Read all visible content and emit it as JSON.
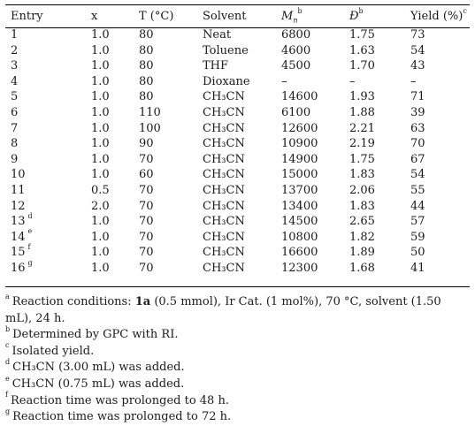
{
  "headers": {
    "entry": "Entry",
    "x": "x",
    "temp": "T (°C)",
    "solvent": "Solvent",
    "mn_base": "M",
    "mn_sub": "n",
    "mn_sup": "b",
    "d_sym": "Đ",
    "d_sup": "b",
    "yield": "Yield (%)",
    "yield_sup": "c"
  },
  "rows": [
    {
      "entry": "1",
      "sup": "",
      "x": "1.0",
      "t": "80",
      "solvent": "Neat",
      "mn": "6800",
      "d": "1.75",
      "yield": "73"
    },
    {
      "entry": "2",
      "sup": "",
      "x": "1.0",
      "t": "80",
      "solvent": "Toluene",
      "mn": "4600",
      "d": "1.63",
      "yield": "54"
    },
    {
      "entry": "3",
      "sup": "",
      "x": "1.0",
      "t": "80",
      "solvent": "THF",
      "mn": "4500",
      "d": "1.70",
      "yield": "43"
    },
    {
      "entry": "4",
      "sup": "",
      "x": "1.0",
      "t": "80",
      "solvent": "Dioxane",
      "mn": "–",
      "d": "–",
      "yield": "–"
    },
    {
      "entry": "5",
      "sup": "",
      "x": "1.0",
      "t": "80",
      "solvent": "CH₃CN",
      "mn": "14600",
      "d": "1.93",
      "yield": "71"
    },
    {
      "entry": "6",
      "sup": "",
      "x": "1.0",
      "t": "110",
      "solvent": "CH₃CN",
      "mn": "6100",
      "d": "1.88",
      "yield": "39"
    },
    {
      "entry": "7",
      "sup": "",
      "x": "1.0",
      "t": "100",
      "solvent": "CH₃CN",
      "mn": "12600",
      "d": "2.21",
      "yield": "63"
    },
    {
      "entry": "8",
      "sup": "",
      "x": "1.0",
      "t": "90",
      "solvent": "CH₃CN",
      "mn": "10900",
      "d": "2.19",
      "yield": "70"
    },
    {
      "entry": "9",
      "sup": "",
      "x": "1.0",
      "t": "70",
      "solvent": "CH₃CN",
      "mn": "14900",
      "d": "1.75",
      "yield": "67"
    },
    {
      "entry": "10",
      "sup": "",
      "x": "1.0",
      "t": "60",
      "solvent": "CH₃CN",
      "mn": "15000",
      "d": "1.83",
      "yield": "54"
    },
    {
      "entry": "11",
      "sup": "",
      "x": "0.5",
      "t": "70",
      "solvent": "CH₃CN",
      "mn": "13700",
      "d": "2.06",
      "yield": "55"
    },
    {
      "entry": "12",
      "sup": "",
      "x": "2.0",
      "t": "70",
      "solvent": "CH₃CN",
      "mn": "13400",
      "d": "1.83",
      "yield": "44"
    },
    {
      "entry": "13",
      "sup": "d",
      "x": "1.0",
      "t": "70",
      "solvent": "CH₃CN",
      "mn": "14500",
      "d": "2.65",
      "yield": "57"
    },
    {
      "entry": "14",
      "sup": "e",
      "x": "1.0",
      "t": "70",
      "solvent": "CH₃CN",
      "mn": "10800",
      "d": "1.82",
      "yield": "59"
    },
    {
      "entry": "15",
      "sup": "f",
      "x": "1.0",
      "t": "70",
      "solvent": "CH₃CN",
      "mn": "16600",
      "d": "1.89",
      "yield": "50"
    },
    {
      "entry": "16",
      "sup": "g",
      "x": "1.0",
      "t": "70",
      "solvent": "CH₃CN",
      "mn": "12300",
      "d": "1.68",
      "yield": "41"
    }
  ],
  "footnotes": {
    "a": {
      "mark": "a",
      "pre": "Reaction conditions: ",
      "bold": "1a",
      "post": " (0.5 mmol), Ir Cat. (1 mol%), 70 °C, solvent (1.50 mL), 24 h."
    },
    "b": {
      "mark": "b",
      "text": "Determined by GPC with RI."
    },
    "c": {
      "mark": "c",
      "text": "Isolated yield."
    },
    "d": {
      "mark": "d",
      "text": "CH₃CN (3.00 mL) was added."
    },
    "e": {
      "mark": "e",
      "text": "CH₃CN (0.75 mL) was added."
    },
    "f": {
      "mark": "f",
      "text": "Reaction time was prolonged to 48 h."
    },
    "g": {
      "mark": "g",
      "text": "Reaction time was prolonged to 72 h."
    }
  }
}
